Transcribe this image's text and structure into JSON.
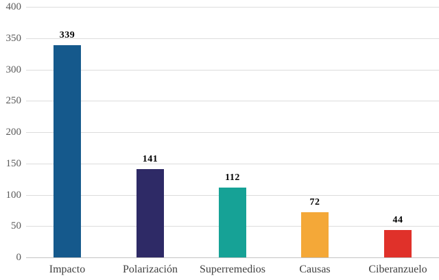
{
  "chart_data": {
    "type": "bar",
    "categories": [
      "Impacto",
      "Polarización",
      "Superremedios",
      "Causas",
      "Ciberanzuelo"
    ],
    "values": [
      339,
      141,
      112,
      72,
      44
    ],
    "bar_colors": [
      "#15598c",
      "#2e2a66",
      "#16a296",
      "#f4a838",
      "#e0312a"
    ],
    "title": "",
    "xlabel": "",
    "ylabel": "",
    "ylim": [
      0,
      400
    ],
    "yticks": [
      0,
      50,
      100,
      150,
      200,
      250,
      300,
      350,
      400
    ],
    "grid": true,
    "legend": false,
    "data_labels": true
  },
  "style": {
    "gridline_color": "#dcdcdc",
    "baseline_color": "#c2c2c2",
    "ytick_label_color": "#595959",
    "xtick_label_color": "#3f3f3f",
    "data_label_color": "#000000",
    "background_color": "#ffffff"
  }
}
